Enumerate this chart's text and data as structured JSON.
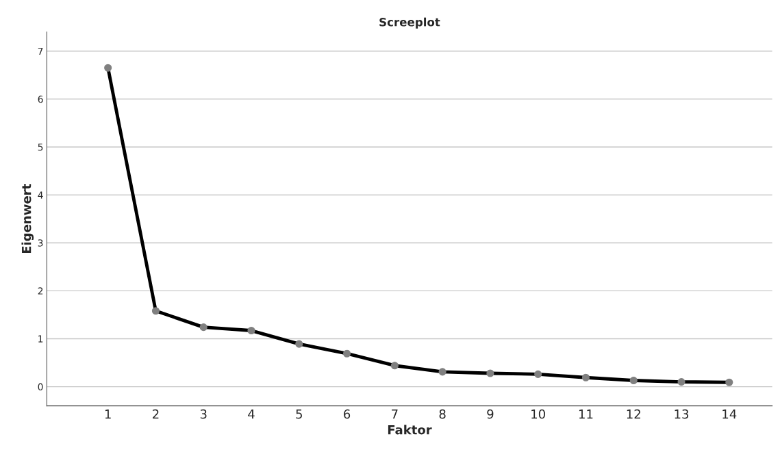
{
  "chart_data": {
    "type": "line",
    "title": "Screeplot",
    "xlabel": "Faktor",
    "ylabel": "Eigenwert",
    "categories": [
      "1",
      "2",
      "3",
      "4",
      "5",
      "6",
      "7",
      "8",
      "9",
      "10",
      "11",
      "12",
      "13",
      "14"
    ],
    "series": [
      {
        "color": "#000000",
        "values": [
          6.65,
          1.58,
          1.24,
          1.17,
          0.89,
          0.69,
          0.44,
          0.31,
          0.28,
          0.26,
          0.19,
          0.13,
          0.1,
          0.09
        ]
      }
    ],
    "ylim": [
      -0.4,
      7.4
    ],
    "yticks": [
      0,
      1,
      2,
      3,
      4,
      5,
      6,
      7
    ],
    "grid": "y",
    "marker": "circle",
    "line_style": "solid",
    "legend": false
  }
}
